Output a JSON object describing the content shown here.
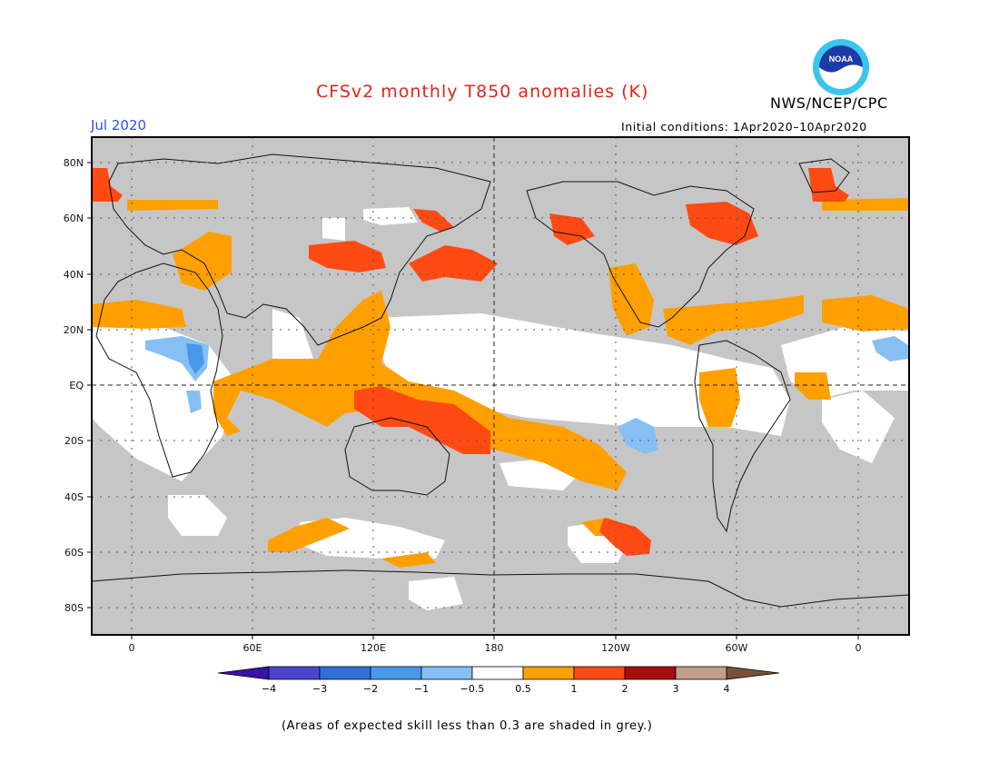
{
  "title": "CFSv2 monthly T850 anomalies (K)",
  "month": "Jul 2020",
  "agency": "NWS/NCEP/CPC",
  "logo_text": "NOAA",
  "initial_conditions": "Initial conditions: 1Apr2020–10Apr2020",
  "lat_labels": [
    "80N",
    "60N",
    "40N",
    "20N",
    "EQ",
    "20S",
    "40S",
    "60S",
    "80S"
  ],
  "lon_labels": [
    "0",
    "60E",
    "120E",
    "180",
    "120W",
    "60W",
    "0"
  ],
  "colorbar": {
    "labels": [
      "−4",
      "−3",
      "−2",
      "−1",
      "−0.5",
      "0.5",
      "1",
      "2",
      "3",
      "4"
    ],
    "colors": [
      "#3a12a6",
      "#4a43cf",
      "#2f6fd6",
      "#4a98ee",
      "#86bff4",
      "#ffffff",
      "#ff9f00",
      "#ff4a14",
      "#a80d0d",
      "#c29e8c",
      "#7a5036"
    ]
  },
  "footnote": "(Areas of expected skill less than 0.3 are shaded in grey.)"
}
